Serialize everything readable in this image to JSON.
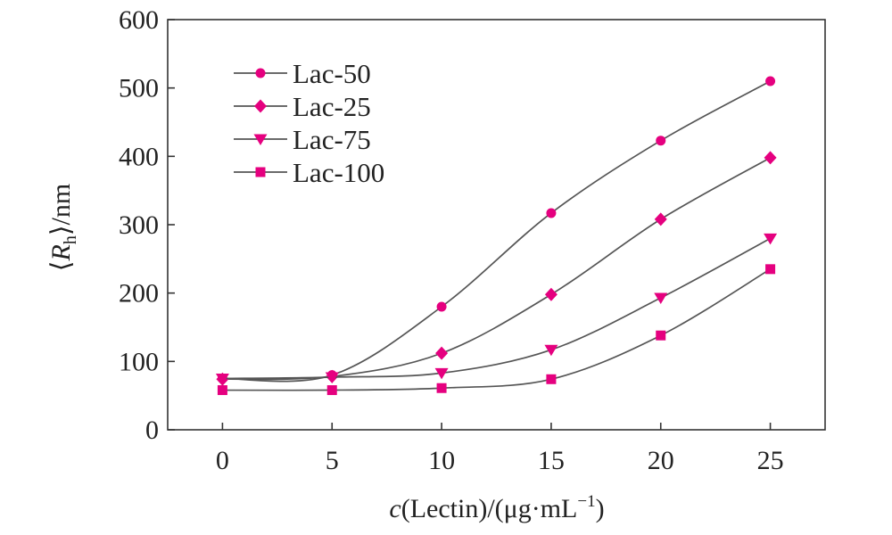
{
  "chart_data": {
    "type": "line",
    "title": "",
    "xlabel": "c(Lectin)/(μg·mL⁻¹)",
    "xlabel_parts": {
      "var": "c",
      "rest": "(Lectin)/(μg·mL",
      "sup": "−1",
      "close": ")"
    },
    "ylabel": "⟨Rh⟩/nm",
    "ylabel_parts": {
      "open": "⟨",
      "var": "R",
      "sub": "h",
      "close": "⟩/nm"
    },
    "x": [
      0,
      5,
      10,
      15,
      20,
      25
    ],
    "xlim": [
      -2.5,
      27.5
    ],
    "ylim": [
      0,
      600
    ],
    "xticks": [
      "0",
      "5",
      "10",
      "15",
      "20",
      "25"
    ],
    "yticks": [
      "0",
      "100",
      "200",
      "300",
      "400",
      "500",
      "600"
    ],
    "grid": false,
    "legend_position": "top-left",
    "line_color": "#555555",
    "marker_color": "#e5007f",
    "series": [
      {
        "name": "Lac-50",
        "marker": "circle",
        "values": [
          75,
          80,
          180,
          317,
          423,
          510
        ]
      },
      {
        "name": "Lac-25",
        "marker": "diamond",
        "values": [
          74,
          78,
          112,
          198,
          308,
          398
        ]
      },
      {
        "name": "Lac-75",
        "marker": "triangle-down",
        "values": [
          75,
          77,
          83,
          117,
          193,
          280
        ]
      },
      {
        "name": "Lac-100",
        "marker": "square",
        "values": [
          58,
          58,
          61,
          74,
          138,
          235
        ]
      }
    ]
  }
}
